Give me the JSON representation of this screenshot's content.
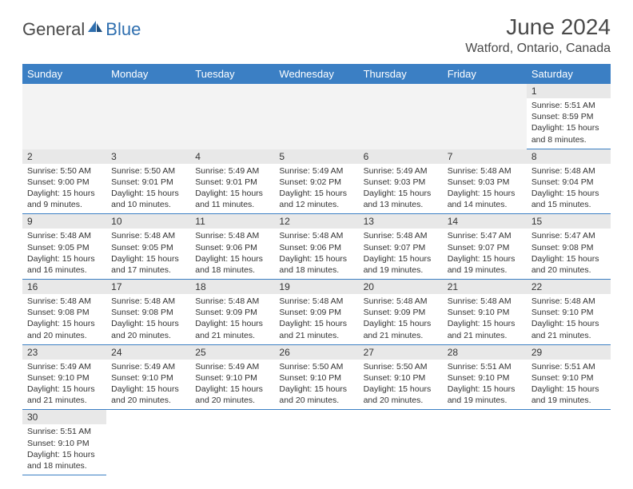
{
  "brand": {
    "text_general": "General",
    "text_blue": "Blue",
    "color_general": "#4a4a4a",
    "color_blue": "#2f6faf"
  },
  "header": {
    "month_title": "June 2024",
    "location": "Watford, Ontario, Canada"
  },
  "theme": {
    "header_bg": "#3b7fc4",
    "daynum_bg": "#e8e8e8",
    "empty_bg": "#f3f3f3",
    "cell_border": "#3b7fc4"
  },
  "weekdays": [
    "Sunday",
    "Monday",
    "Tuesday",
    "Wednesday",
    "Thursday",
    "Friday",
    "Saturday"
  ],
  "weeks": [
    [
      null,
      null,
      null,
      null,
      null,
      null,
      {
        "n": "1",
        "sunrise": "5:51 AM",
        "sunset": "8:59 PM",
        "day_h": 15,
        "day_m": 8
      }
    ],
    [
      {
        "n": "2",
        "sunrise": "5:50 AM",
        "sunset": "9:00 PM",
        "day_h": 15,
        "day_m": 9
      },
      {
        "n": "3",
        "sunrise": "5:50 AM",
        "sunset": "9:01 PM",
        "day_h": 15,
        "day_m": 10
      },
      {
        "n": "4",
        "sunrise": "5:49 AM",
        "sunset": "9:01 PM",
        "day_h": 15,
        "day_m": 11
      },
      {
        "n": "5",
        "sunrise": "5:49 AM",
        "sunset": "9:02 PM",
        "day_h": 15,
        "day_m": 12
      },
      {
        "n": "6",
        "sunrise": "5:49 AM",
        "sunset": "9:03 PM",
        "day_h": 15,
        "day_m": 13
      },
      {
        "n": "7",
        "sunrise": "5:48 AM",
        "sunset": "9:03 PM",
        "day_h": 15,
        "day_m": 14
      },
      {
        "n": "8",
        "sunrise": "5:48 AM",
        "sunset": "9:04 PM",
        "day_h": 15,
        "day_m": 15
      }
    ],
    [
      {
        "n": "9",
        "sunrise": "5:48 AM",
        "sunset": "9:05 PM",
        "day_h": 15,
        "day_m": 16
      },
      {
        "n": "10",
        "sunrise": "5:48 AM",
        "sunset": "9:05 PM",
        "day_h": 15,
        "day_m": 17
      },
      {
        "n": "11",
        "sunrise": "5:48 AM",
        "sunset": "9:06 PM",
        "day_h": 15,
        "day_m": 18
      },
      {
        "n": "12",
        "sunrise": "5:48 AM",
        "sunset": "9:06 PM",
        "day_h": 15,
        "day_m": 18
      },
      {
        "n": "13",
        "sunrise": "5:48 AM",
        "sunset": "9:07 PM",
        "day_h": 15,
        "day_m": 19
      },
      {
        "n": "14",
        "sunrise": "5:47 AM",
        "sunset": "9:07 PM",
        "day_h": 15,
        "day_m": 19
      },
      {
        "n": "15",
        "sunrise": "5:47 AM",
        "sunset": "9:08 PM",
        "day_h": 15,
        "day_m": 20
      }
    ],
    [
      {
        "n": "16",
        "sunrise": "5:48 AM",
        "sunset": "9:08 PM",
        "day_h": 15,
        "day_m": 20
      },
      {
        "n": "17",
        "sunrise": "5:48 AM",
        "sunset": "9:08 PM",
        "day_h": 15,
        "day_m": 20
      },
      {
        "n": "18",
        "sunrise": "5:48 AM",
        "sunset": "9:09 PM",
        "day_h": 15,
        "day_m": 21
      },
      {
        "n": "19",
        "sunrise": "5:48 AM",
        "sunset": "9:09 PM",
        "day_h": 15,
        "day_m": 21
      },
      {
        "n": "20",
        "sunrise": "5:48 AM",
        "sunset": "9:09 PM",
        "day_h": 15,
        "day_m": 21
      },
      {
        "n": "21",
        "sunrise": "5:48 AM",
        "sunset": "9:10 PM",
        "day_h": 15,
        "day_m": 21
      },
      {
        "n": "22",
        "sunrise": "5:48 AM",
        "sunset": "9:10 PM",
        "day_h": 15,
        "day_m": 21
      }
    ],
    [
      {
        "n": "23",
        "sunrise": "5:49 AM",
        "sunset": "9:10 PM",
        "day_h": 15,
        "day_m": 21
      },
      {
        "n": "24",
        "sunrise": "5:49 AM",
        "sunset": "9:10 PM",
        "day_h": 15,
        "day_m": 20
      },
      {
        "n": "25",
        "sunrise": "5:49 AM",
        "sunset": "9:10 PM",
        "day_h": 15,
        "day_m": 20
      },
      {
        "n": "26",
        "sunrise": "5:50 AM",
        "sunset": "9:10 PM",
        "day_h": 15,
        "day_m": 20
      },
      {
        "n": "27",
        "sunrise": "5:50 AM",
        "sunset": "9:10 PM",
        "day_h": 15,
        "day_m": 20
      },
      {
        "n": "28",
        "sunrise": "5:51 AM",
        "sunset": "9:10 PM",
        "day_h": 15,
        "day_m": 19
      },
      {
        "n": "29",
        "sunrise": "5:51 AM",
        "sunset": "9:10 PM",
        "day_h": 15,
        "day_m": 19
      }
    ],
    [
      {
        "n": "30",
        "sunrise": "5:51 AM",
        "sunset": "9:10 PM",
        "day_h": 15,
        "day_m": 18
      },
      null,
      null,
      null,
      null,
      null,
      null
    ]
  ],
  "labels": {
    "sunrise_prefix": "Sunrise: ",
    "sunset_prefix": "Sunset: ",
    "daylight_prefix": "Daylight: ",
    "hours_word": " hours",
    "and_word": "and ",
    "minutes_suffix": " minutes."
  }
}
